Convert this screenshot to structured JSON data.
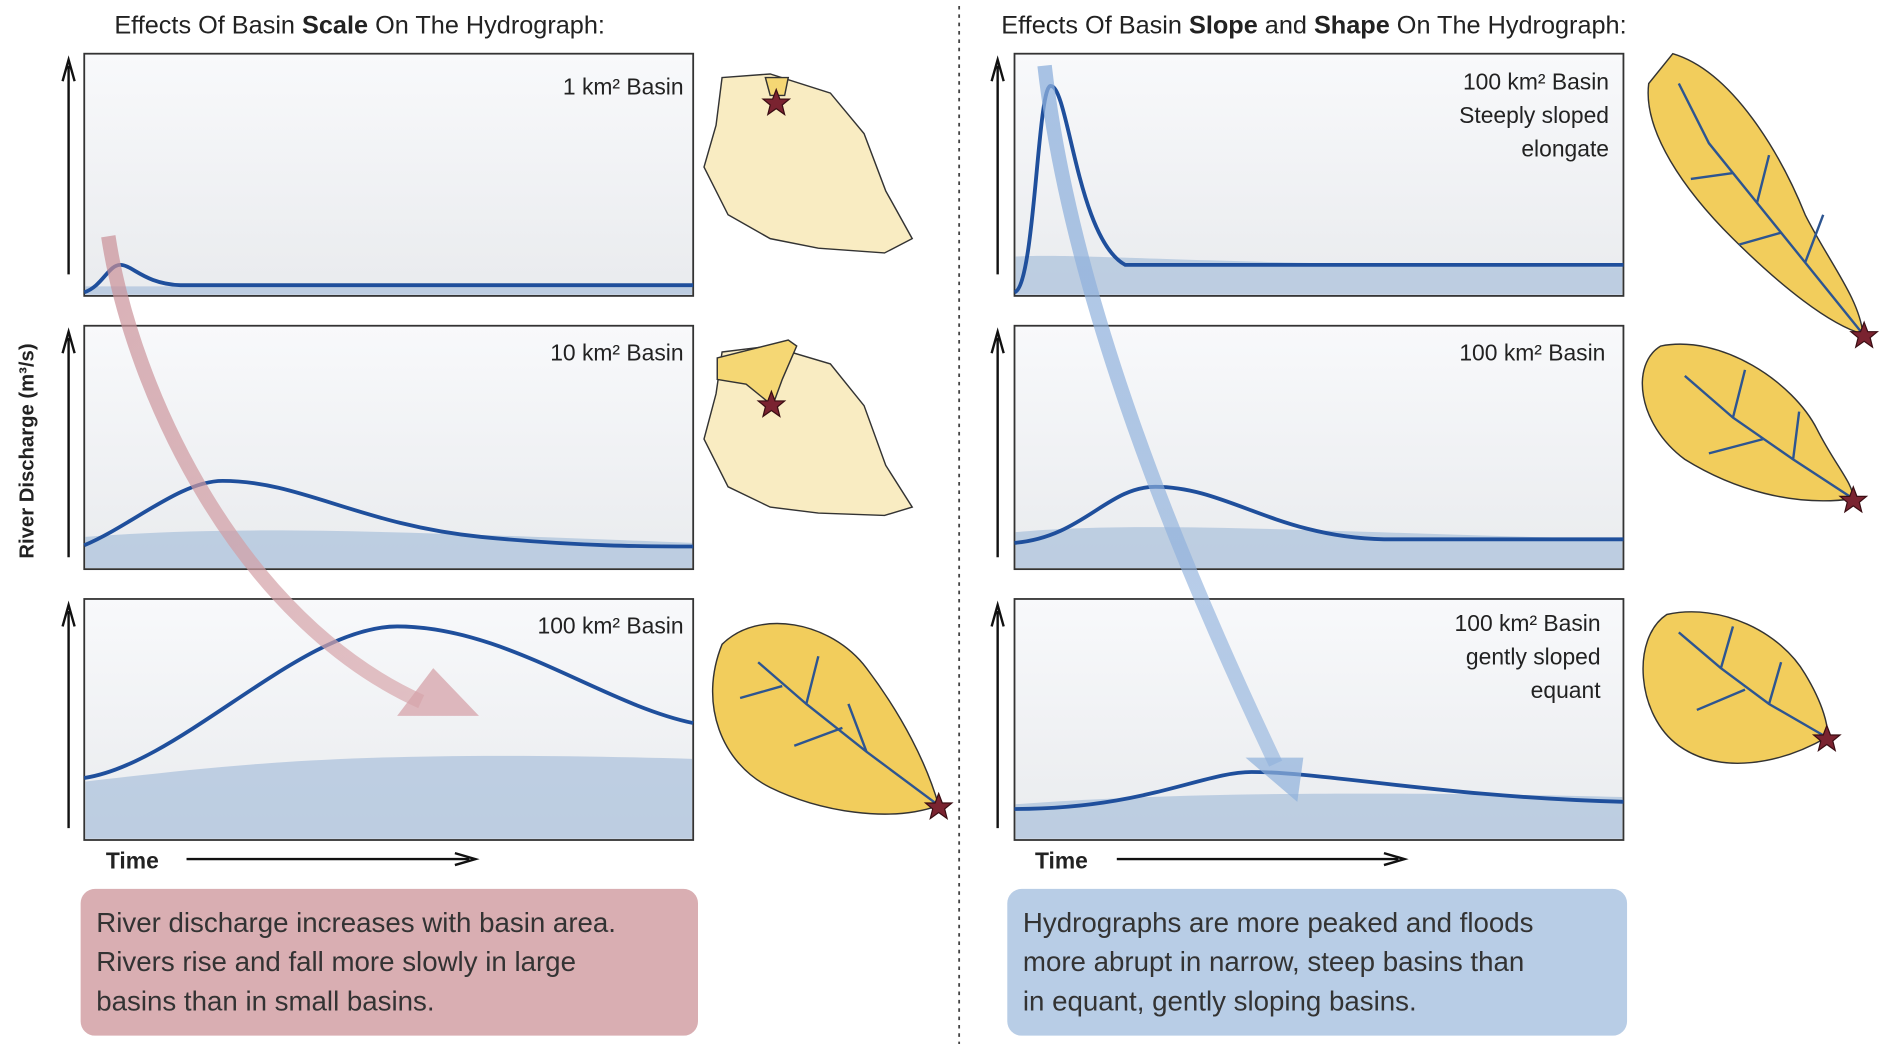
{
  "left": {
    "title": [
      "Effects Of Basin ",
      "Scale",
      " On The Hydrograph:"
    ],
    "panels": [
      [
        "1 km² Basin"
      ],
      [
        "10 km² Basin"
      ],
      [
        "100 km² Basin"
      ]
    ],
    "x_label": "Time",
    "caption": [
      "River discharge increases with basin area.",
      "Rivers rise and fall more slowly in large",
      "basins than in small basins."
    ]
  },
  "right": {
    "title": [
      "Effects Of Basin ",
      "Slope",
      " and ",
      "Shape",
      " On The Hydrograph:"
    ],
    "panels": [
      [
        "100 km² Basin",
        "Steeply sloped",
        "elongate"
      ],
      [
        "100 km² Basin"
      ],
      [
        "100 km² Basin",
        "gently sloped",
        "equant"
      ]
    ],
    "x_label": "Time",
    "caption": [
      "Hydrographs are more peaked and floods",
      "more abrupt in narrow, steep basins than",
      "in equant, gently sloping basins."
    ]
  },
  "y_label": "River Discharge (m³/s)"
}
